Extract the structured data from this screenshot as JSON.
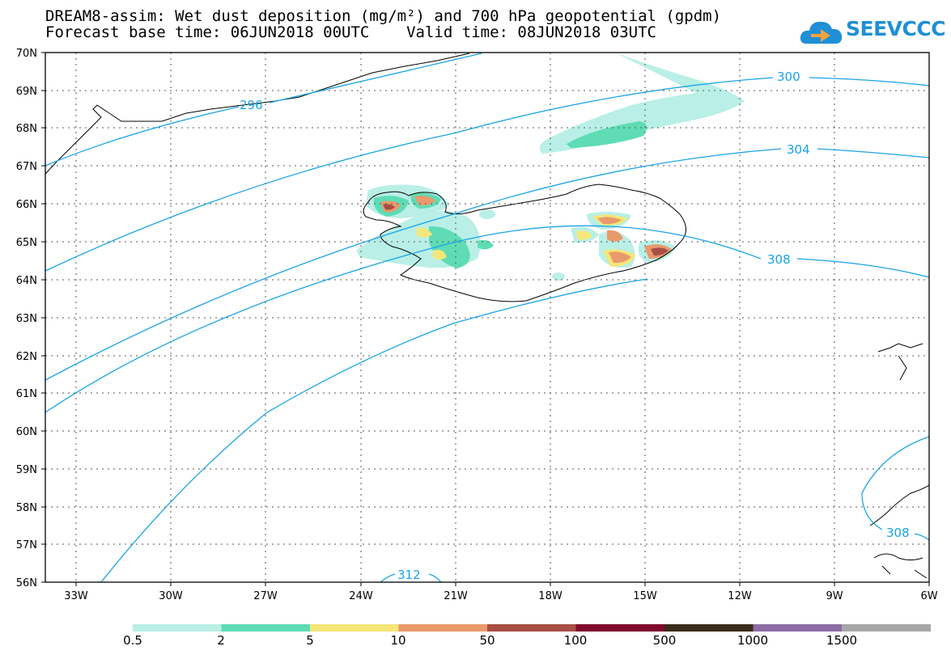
{
  "header": {
    "title_line1": "DREAM8-assim: Wet dust deposition (mg/m²) and 700 hPa geopotential (gpdm)",
    "title_line2": "Forecast base time: 06JUN2018 00UTC    Valid time: 08JUN2018 03UTC",
    "logo_text": "SEEVCCC"
  },
  "map": {
    "lat_labels": [
      "70N",
      "69N",
      "68N",
      "67N",
      "66N",
      "65N",
      "64N",
      "63N",
      "62N",
      "61N",
      "60N",
      "59N",
      "58N",
      "57N",
      "56N"
    ],
    "lon_labels": [
      "33W",
      "30W",
      "27W",
      "24W",
      "21W",
      "18W",
      "15W",
      "12W",
      "9W",
      "6W"
    ],
    "contour_labels": [
      "296",
      "300",
      "304",
      "308",
      "312",
      "308"
    ],
    "contour_color": "#1aa3e6"
  },
  "legend": {
    "labels": [
      "0.5",
      "2",
      "5",
      "10",
      "50",
      "100",
      "500",
      "1000",
      "1500"
    ],
    "colors": [
      "#b9efe6",
      "#5fdcb4",
      "#f5e678",
      "#e99a6c",
      "#a94e44",
      "#7f0b2c",
      "#3a2a19",
      "#8e6ca6",
      "#a6a6a6"
    ]
  },
  "logo": {
    "color": "#1f8fd6"
  }
}
